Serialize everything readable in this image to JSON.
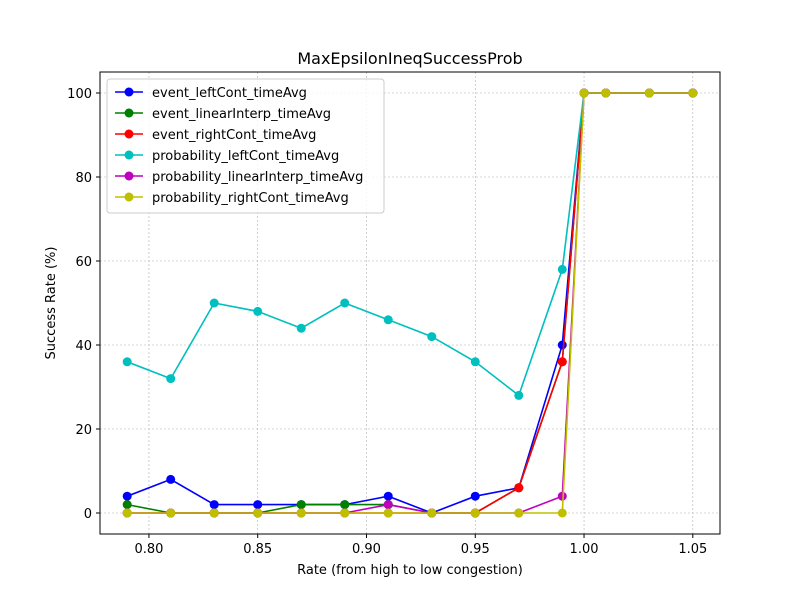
{
  "chart_data": {
    "type": "line",
    "title": "MaxEpsilonIneqSuccessProb",
    "xlabel": "Rate (from high to low congestion)",
    "ylabel": "Success Rate (%)",
    "xlim": [
      0.7775,
      1.0625
    ],
    "ylim": [
      -5,
      105
    ],
    "xticks": [
      0.8,
      0.85,
      0.9,
      0.95,
      1.0,
      1.05
    ],
    "xtick_labels": [
      "0.80",
      "0.85",
      "0.90",
      "0.95",
      "1.00",
      "1.05"
    ],
    "yticks": [
      0,
      20,
      40,
      60,
      80,
      100
    ],
    "ytick_labels": [
      "0",
      "20",
      "40",
      "60",
      "80",
      "100"
    ],
    "grid": true,
    "legend_position": "top-left",
    "x": [
      0.79,
      0.81,
      0.83,
      0.85,
      0.87,
      0.89,
      0.91,
      0.93,
      0.95,
      0.97,
      0.99,
      1.0,
      1.01,
      1.03,
      1.05
    ],
    "series": [
      {
        "name": "event_leftCont_timeAvg",
        "color": "#0000ff",
        "values": [
          4,
          8,
          2,
          2,
          2,
          2,
          4,
          0,
          4,
          6,
          40,
          100,
          100,
          100,
          100
        ]
      },
      {
        "name": "event_linearInterp_timeAvg",
        "color": "#008000",
        "values": [
          2,
          0,
          0,
          0,
          2,
          2,
          2,
          0,
          0,
          6,
          36,
          100,
          100,
          100,
          100
        ]
      },
      {
        "name": "event_rightCont_timeAvg",
        "color": "#ff0000",
        "values": [
          0,
          0,
          0,
          0,
          0,
          0,
          0,
          0,
          0,
          6,
          36,
          100,
          100,
          100,
          100
        ]
      },
      {
        "name": "probability_leftCont_timeAvg",
        "color": "#00bfbf",
        "values": [
          36,
          32,
          50,
          48,
          44,
          50,
          46,
          42,
          36,
          28,
          58,
          100,
          100,
          100,
          100
        ]
      },
      {
        "name": "probability_linearInterp_timeAvg",
        "color": "#bf00bf",
        "values": [
          0,
          0,
          0,
          0,
          0,
          0,
          2,
          0,
          0,
          0,
          4,
          100,
          100,
          100,
          100
        ]
      },
      {
        "name": "probability_rightCont_timeAvg",
        "color": "#bfbf00",
        "values": [
          0,
          0,
          0,
          0,
          0,
          0,
          0,
          0,
          0,
          0,
          0,
          100,
          100,
          100,
          100
        ]
      }
    ]
  }
}
